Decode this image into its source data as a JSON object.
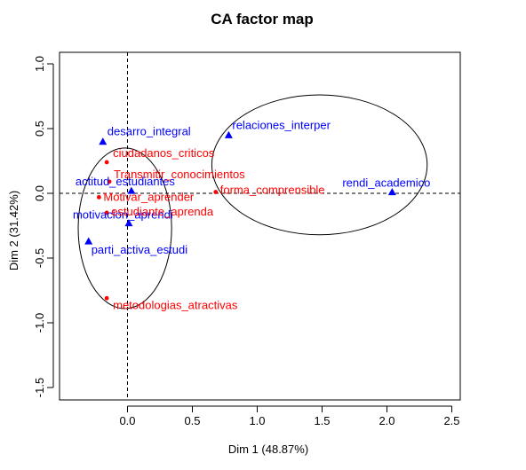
{
  "chart_data": {
    "type": "scatter",
    "title": "CA factor map",
    "xlabel": "Dim 1 (48.87%)",
    "ylabel": "Dim 2 (31.42%)",
    "xlim": [
      -0.5,
      2.5
    ],
    "ylim": [
      -1.5,
      1.0
    ],
    "xticks": [
      "0.0",
      "0.5",
      "1.0",
      "1.5",
      "2.0",
      "2.5"
    ],
    "yticks": [
      "-1.5",
      "-1.0",
      "-0.5",
      "0.0",
      "0.5",
      "1.0"
    ],
    "grid": false,
    "series": [
      {
        "marker": "triangle",
        "color": "#0000ff",
        "points": [
          {
            "label": "desarro_integral",
            "x": -0.19,
            "y": 0.4
          },
          {
            "label": "relaciones_interper",
            "x": 0.78,
            "y": 0.45
          },
          {
            "label": "actitud_estudiantes",
            "x": 0.03,
            "y": 0.02
          },
          {
            "label": "rendi_academico",
            "x": 2.04,
            "y": 0.01
          },
          {
            "label": "motivacion_aprendi",
            "x": 0.01,
            "y": -0.23
          },
          {
            "label": "parti_activa_estudi",
            "x": -0.3,
            "y": -0.37
          }
        ]
      },
      {
        "marker": "circle",
        "color": "#ff0000",
        "points": [
          {
            "label": "ciudadanos_criticos",
            "x": -0.16,
            "y": 0.24
          },
          {
            "label": "Transmitir_conocimientos",
            "x": -0.14,
            "y": 0.09
          },
          {
            "label": "forma_comprensible",
            "x": 0.68,
            "y": 0.01
          },
          {
            "label": "Motivar_aprender",
            "x": -0.22,
            "y": -0.03
          },
          {
            "label": "estudiante_aprenda",
            "x": -0.16,
            "y": -0.15
          },
          {
            "label": "metodologias_atractivas",
            "x": -0.16,
            "y": -0.81
          }
        ]
      }
    ],
    "ellipses": [
      {
        "cx": -0.02,
        "cy": -0.27,
        "rx": 0.36,
        "ry": 0.62
      },
      {
        "cx": 1.48,
        "cy": 0.22,
        "rx": 0.83,
        "ry": 0.54
      }
    ]
  }
}
